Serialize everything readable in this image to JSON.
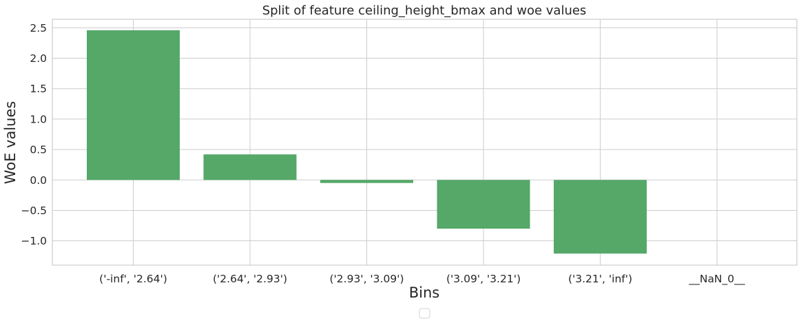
{
  "chart_data": {
    "type": "bar",
    "title": "Split of feature ceiling_height_bmax and woe values",
    "xlabel": "Bins",
    "ylabel": "WoE values",
    "categories": [
      "('-inf', '2.64')",
      "('2.64', '2.93')",
      "('2.93', '3.09')",
      "('3.09', '3.21')",
      "('3.21', 'inf')",
      "__NaN_0__"
    ],
    "values": [
      2.46,
      0.42,
      -0.05,
      -0.8,
      -1.21,
      0
    ],
    "ylim": [
      -1.4,
      2.64
    ],
    "yticks": [
      2.5,
      2.0,
      1.5,
      1.0,
      0.5,
      0.0,
      -0.5,
      -1.0
    ],
    "ytick_labels": [
      "2.5",
      "2.0",
      "1.5",
      "1.0",
      "0.5",
      "0.0",
      "−0.5",
      "−1.0"
    ],
    "bar_color": "#55a868",
    "grid": true,
    "legend": {
      "placement": "bottom-center",
      "entries": []
    }
  }
}
